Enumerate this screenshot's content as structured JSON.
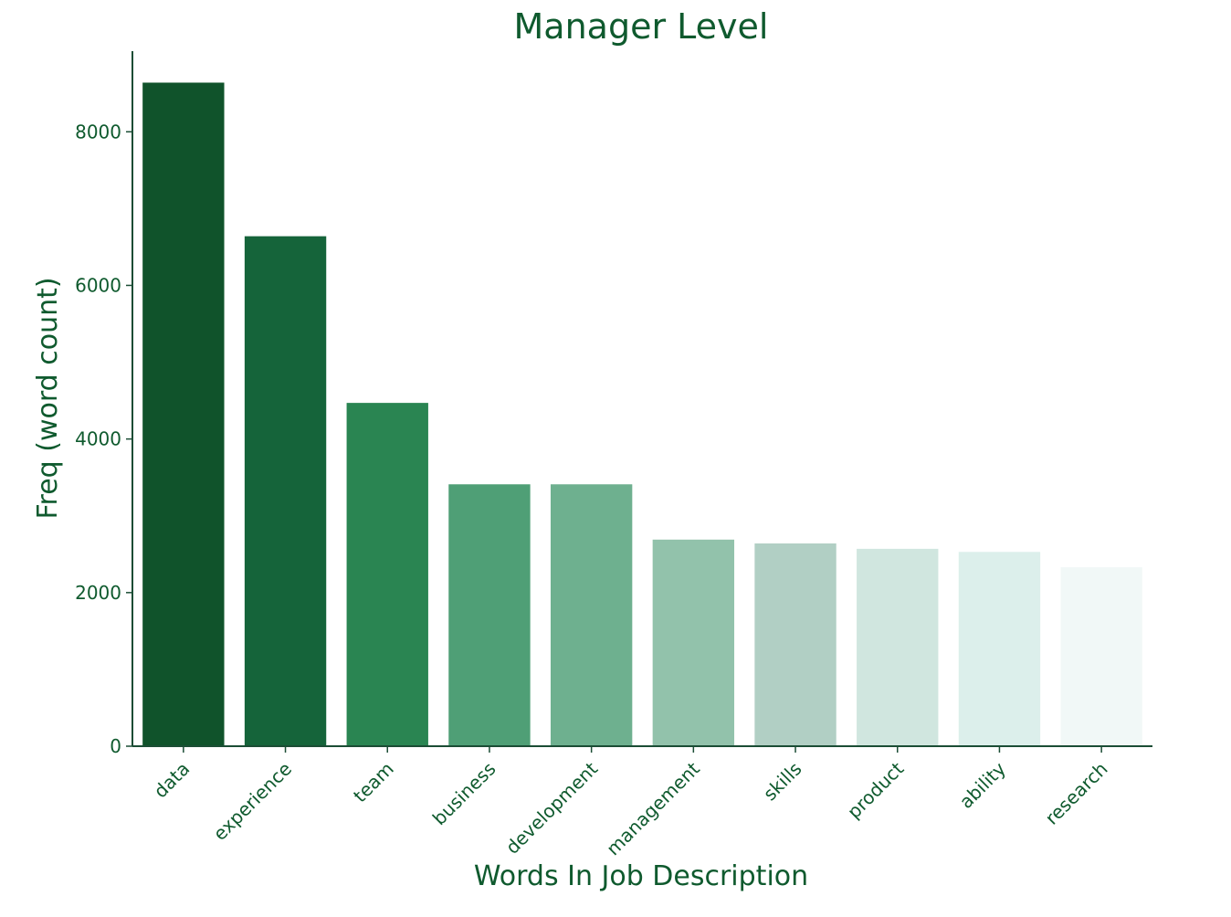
{
  "chart_data": {
    "type": "bar",
    "title": "Manager Level",
    "xlabel": "Words In Job Description",
    "ylabel": "Freq (word count)",
    "categories": [
      "data",
      "experience",
      "team",
      "business",
      "development",
      "management",
      "skills",
      "product",
      "ability",
      "research"
    ],
    "values": [
      8640,
      6640,
      4470,
      3410,
      3410,
      2690,
      2640,
      2570,
      2530,
      2330
    ],
    "ylim": [
      0,
      9050
    ],
    "yticks": [
      0,
      2000,
      4000,
      6000,
      8000
    ],
    "ytick_labels": [
      "0",
      "2000",
      "4000",
      "6000",
      "8000"
    ],
    "grid": false,
    "legend": "none",
    "colors": {
      "text": "#0f5a2e",
      "axis": "#1b4d35",
      "bars": [
        "#10532b",
        "#15643a",
        "#2a8552",
        "#4f9f76",
        "#6eb08f",
        "#92c2ab",
        "#b1cfc4",
        "#d0e6df",
        "#dcefeb",
        "#f1f8f7"
      ]
    }
  }
}
